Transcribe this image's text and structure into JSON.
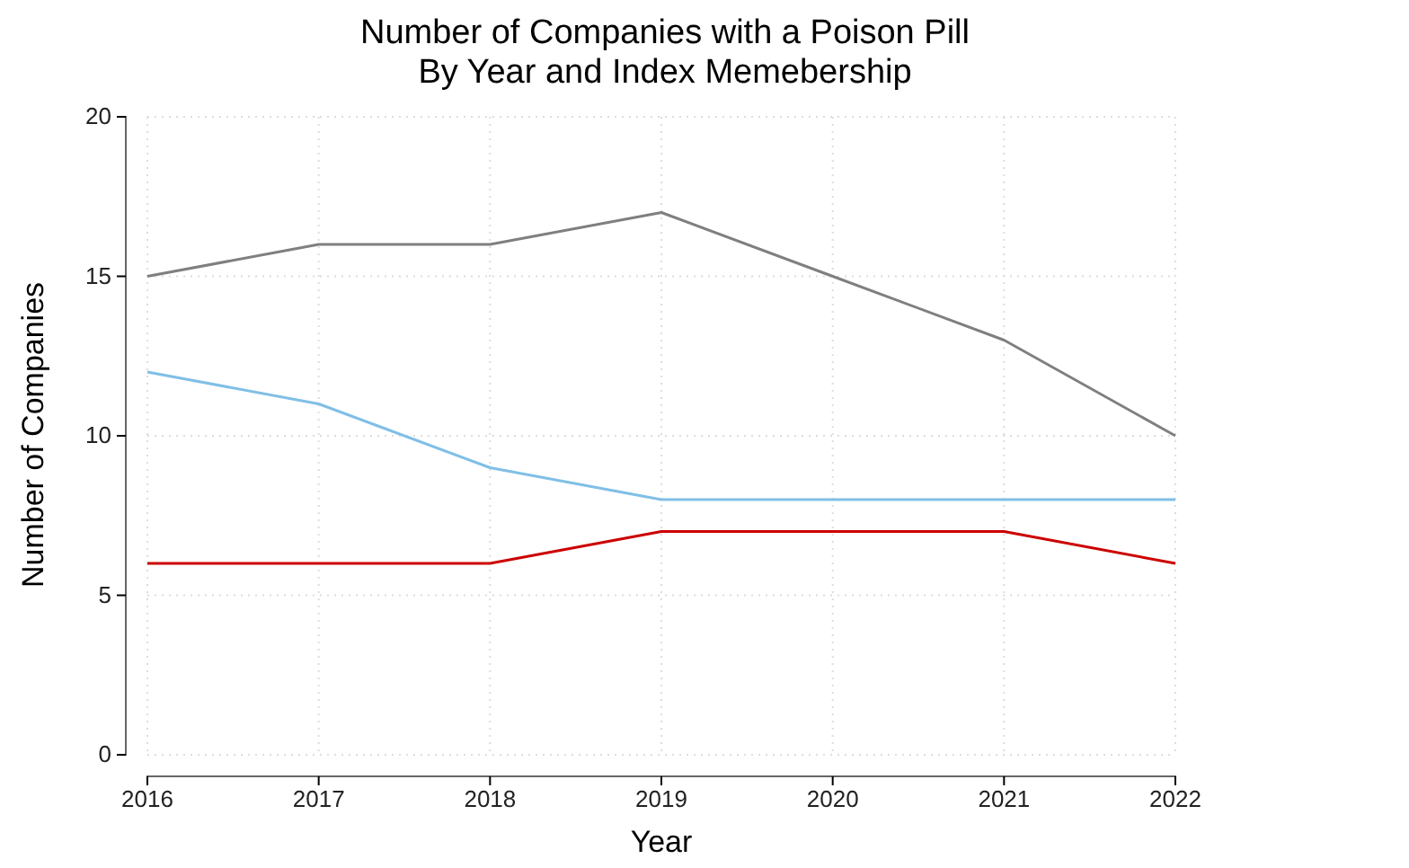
{
  "chart_data": {
    "type": "line",
    "title": "Number of Companies with a Poison Pill",
    "subtitle": "By Year and Index Memebership",
    "xlabel": "Year",
    "ylabel": "Number of Companies",
    "x": [
      2016,
      2017,
      2018,
      2019,
      2020,
      2021,
      2022
    ],
    "series": [
      {
        "color": "#cc0000",
        "values": [
          6,
          6,
          6,
          7,
          7,
          7,
          6
        ]
      },
      {
        "color": "#80bfe6",
        "values": [
          12,
          11,
          9,
          8,
          8,
          8,
          8
        ]
      },
      {
        "color": "#7f7f7f",
        "values": [
          15,
          16,
          16,
          17,
          15,
          13,
          10
        ]
      }
    ],
    "xlim": [
      2016,
      2022
    ],
    "xticks": [
      2016,
      2017,
      2018,
      2019,
      2020,
      2021,
      2022
    ],
    "ylim": [
      0,
      20
    ],
    "yticks": [
      0,
      5,
      10,
      15,
      20
    ],
    "grid": true,
    "marker": "none",
    "line_style": "solid"
  }
}
